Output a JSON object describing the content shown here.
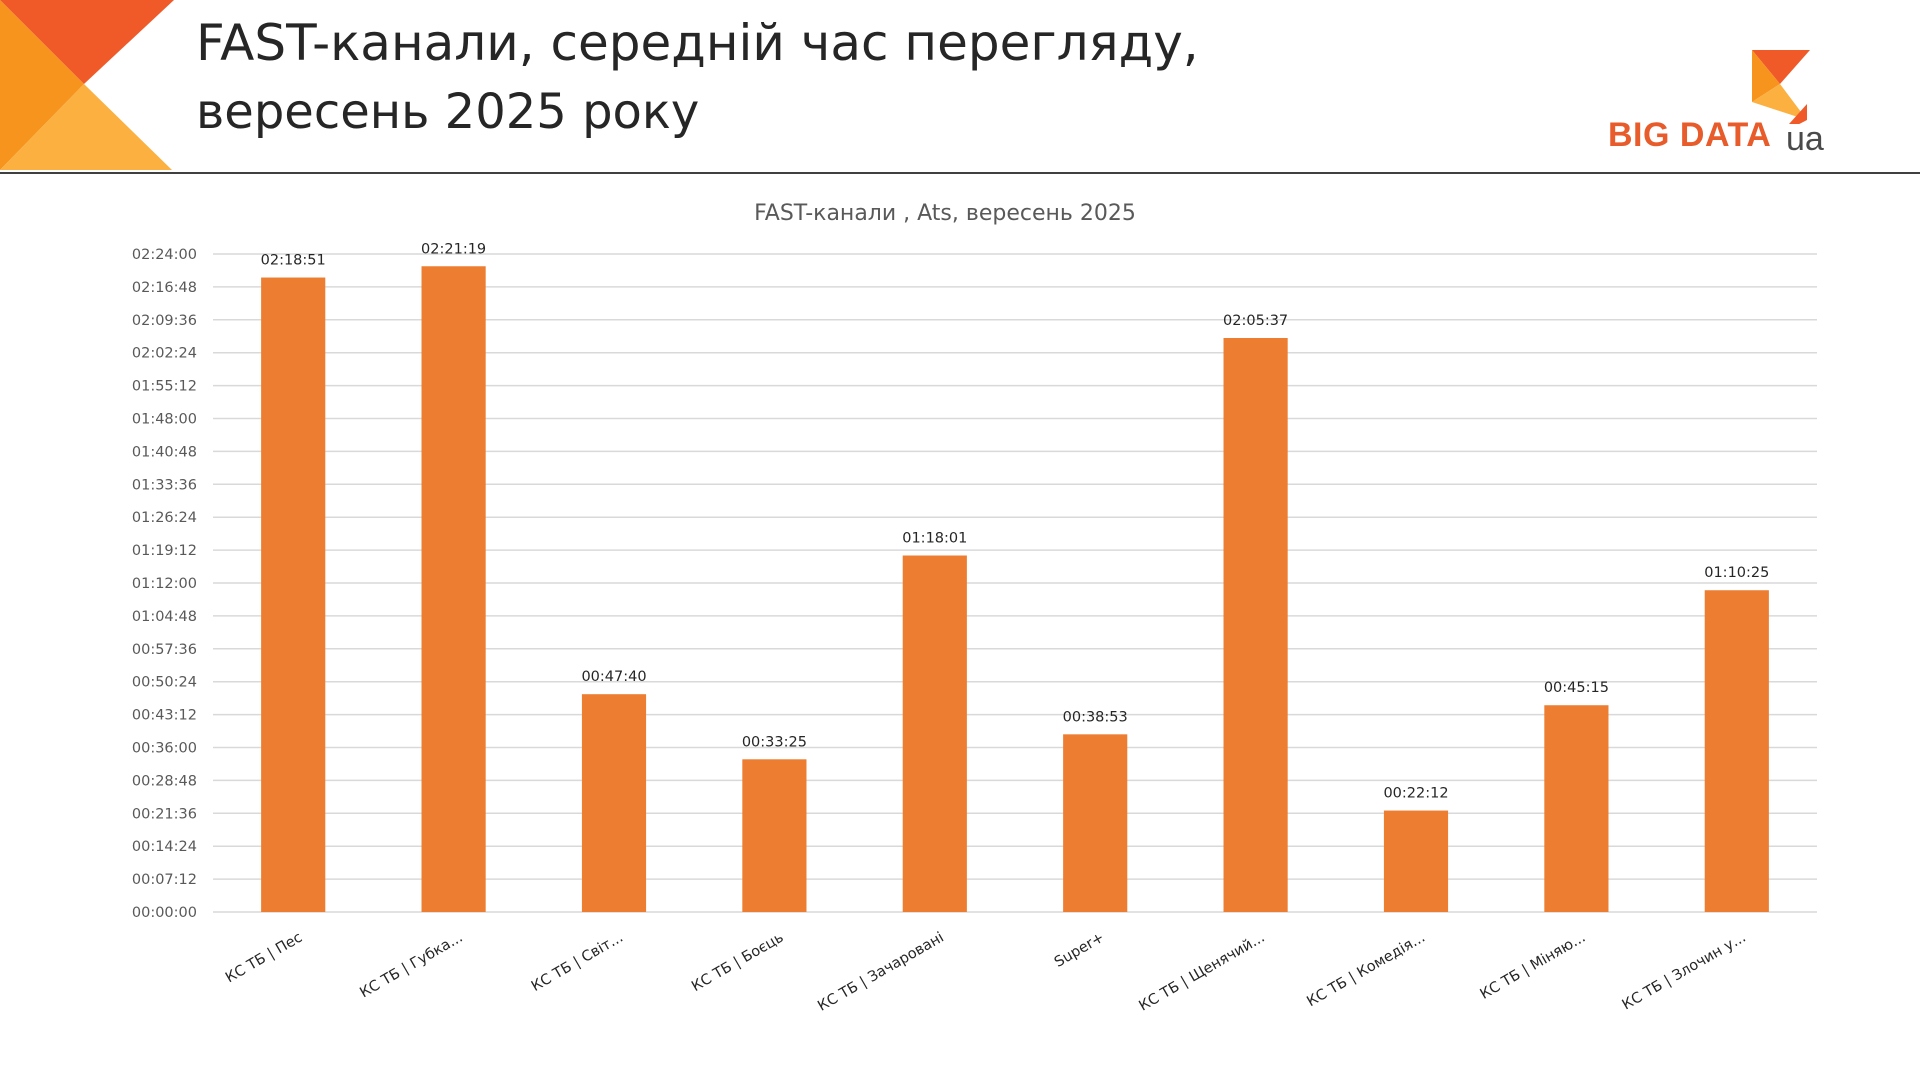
{
  "header": {
    "title_line1": "FAST-канали, середній час перегляду,",
    "title_line2": "вересень 2025 року"
  },
  "logo": {
    "main": "BIG DATA",
    "suffix": "ua"
  },
  "colors": {
    "bar": "#ed7d31",
    "corner_dark": "#f05a28",
    "corner_light": "#fbb040",
    "corner_mid": "#f7941d",
    "gridline": "#d9d9d9"
  },
  "chart_data": {
    "type": "bar",
    "title": "FAST-канали , Ats, вересень 2025",
    "categories": [
      "КС ТБ | Пес",
      "КС ТБ | Губка...",
      "КС ТБ | Світ...",
      "КС ТБ | Боєць",
      "КС ТБ | Зачаровані",
      "Super+",
      "КС ТБ | Щенячий...",
      "КС ТБ | Комедія...",
      "КС ТБ | Міняю...",
      "КС ТБ | Злочин у..."
    ],
    "values": [
      8331,
      8479,
      2860,
      2005,
      4681,
      2333,
      7537,
      1332,
      2715,
      4225
    ],
    "value_labels": [
      "02:18:51",
      "02:21:19",
      "00:47:40",
      "00:33:25",
      "01:18:01",
      "00:38:53",
      "02:05:37",
      "00:22:12",
      "00:45:15",
      "01:10:25"
    ],
    "value_unit": "seconds",
    "ylim": [
      0,
      8640
    ],
    "yticks": [
      0,
      432,
      864,
      1296,
      1728,
      2160,
      2592,
      3024,
      3456,
      3888,
      4320,
      4752,
      5184,
      5616,
      6048,
      6480,
      6912,
      7344,
      7776,
      8208,
      8640
    ],
    "ytick_labels": [
      "00:00:00",
      "00:07:12",
      "00:14:24",
      "00:21:36",
      "00:28:48",
      "00:36:00",
      "00:43:12",
      "00:50:24",
      "00:57:36",
      "01:04:48",
      "01:12:00",
      "01:19:12",
      "01:26:24",
      "01:33:36",
      "01:40:48",
      "01:48:00",
      "01:55:12",
      "02:02:24",
      "02:09:36",
      "02:16:48",
      "02:24:00"
    ],
    "xlabel": "",
    "ylabel": "",
    "grid": true,
    "legend": "none"
  }
}
